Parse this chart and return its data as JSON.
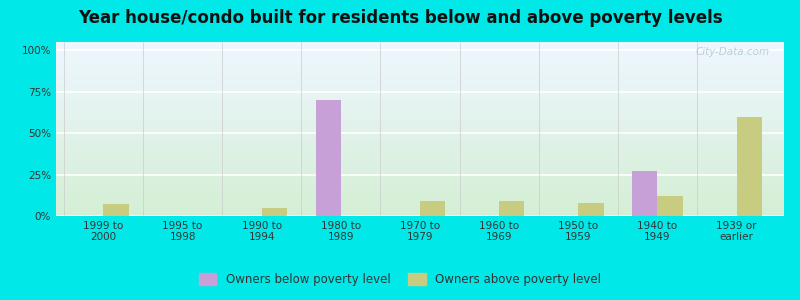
{
  "title": "Year house/condo built for residents below and above poverty levels",
  "categories": [
    "1999 to\n2000",
    "1995 to\n1998",
    "1990 to\n1994",
    "1980 to\n1989",
    "1970 to\n1979",
    "1960 to\n1969",
    "1950 to\n1959",
    "1940 to\n1949",
    "1939 or\nearlier"
  ],
  "below_poverty": [
    0,
    0,
    0,
    70,
    0,
    0,
    0,
    27,
    0
  ],
  "above_poverty": [
    7,
    0,
    5,
    0,
    9,
    9,
    8,
    12,
    60
  ],
  "below_color": "#c8a0d8",
  "above_color": "#c8cc80",
  "yticks": [
    0,
    25,
    50,
    75,
    100
  ],
  "ytick_labels": [
    "0%",
    "25%",
    "50%",
    "75%",
    "100%"
  ],
  "ylim": [
    0,
    105
  ],
  "background_outer": "#00e8e8",
  "background_inner_top": "#eef6ff",
  "background_inner_bottom": "#d4eed4",
  "grid_color": "#ffffff",
  "bar_width": 0.32,
  "legend_below_label": "Owners below poverty level",
  "legend_above_label": "Owners above poverty level",
  "title_fontsize": 12,
  "tick_fontsize": 7.5,
  "legend_fontsize": 8.5,
  "watermark_text": "City-Data.com"
}
